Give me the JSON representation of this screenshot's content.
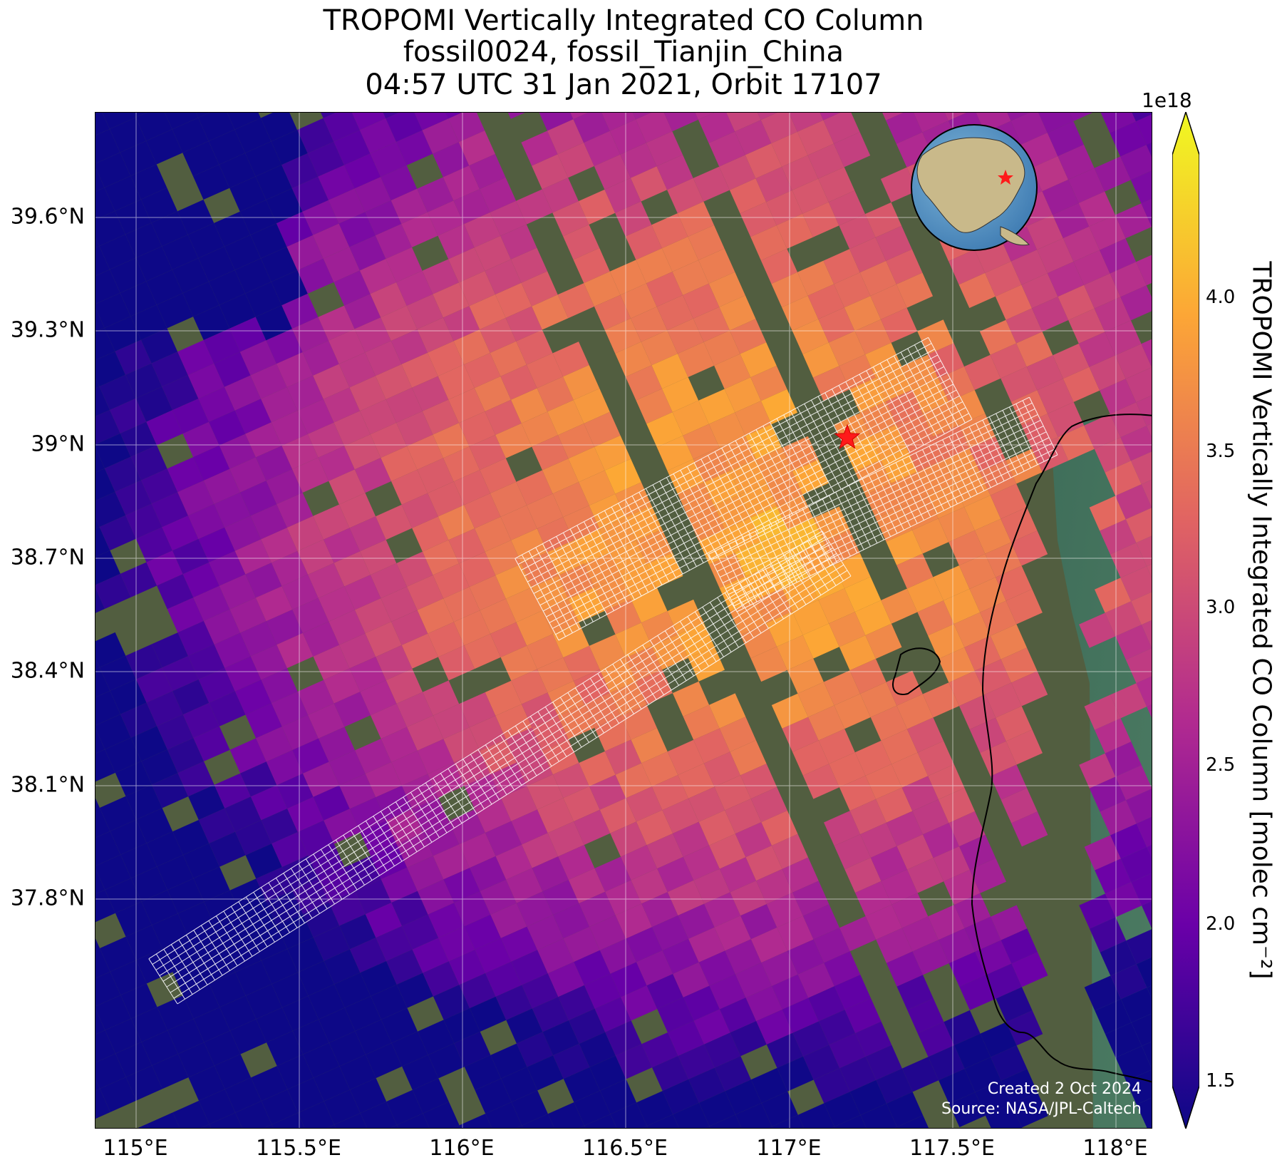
{
  "title": {
    "line1": "TROPOMI Vertically Integrated CO Column",
    "line2": "fossil0024, fossil_Tianjin_China",
    "line3": "04:57 UTC 31 Jan 2021, Orbit 17107"
  },
  "map": {
    "lon_ticks": [
      "115°E",
      "115.5°E",
      "116°E",
      "116.5°E",
      "117°E",
      "117.5°E",
      "118°E"
    ],
    "lat_ticks": [
      "39.6°N",
      "39.3°N",
      "39°N",
      "38.7°N",
      "38.4°N",
      "38.1°N",
      "37.8°N"
    ],
    "target_marker": "red-star",
    "credit_line1": "Created 2 Oct 2024",
    "credit_line2": "Source: NASA/JPL-Caltech",
    "inset": "globe-locator-asia"
  },
  "colorbar": {
    "label": "TROPOMI Vertically Integrated CO Column [molec cm⁻²]",
    "exponent": "1e18",
    "ticks": [
      "1.5",
      "2.0",
      "2.5",
      "3.0",
      "3.5",
      "4.0"
    ],
    "colormap": "plasma",
    "range": [
      1.5,
      4.4
    ],
    "colors": [
      "#0d0887",
      "#6a00a8",
      "#b12a90",
      "#e16462",
      "#fca636",
      "#f0f921"
    ]
  }
}
